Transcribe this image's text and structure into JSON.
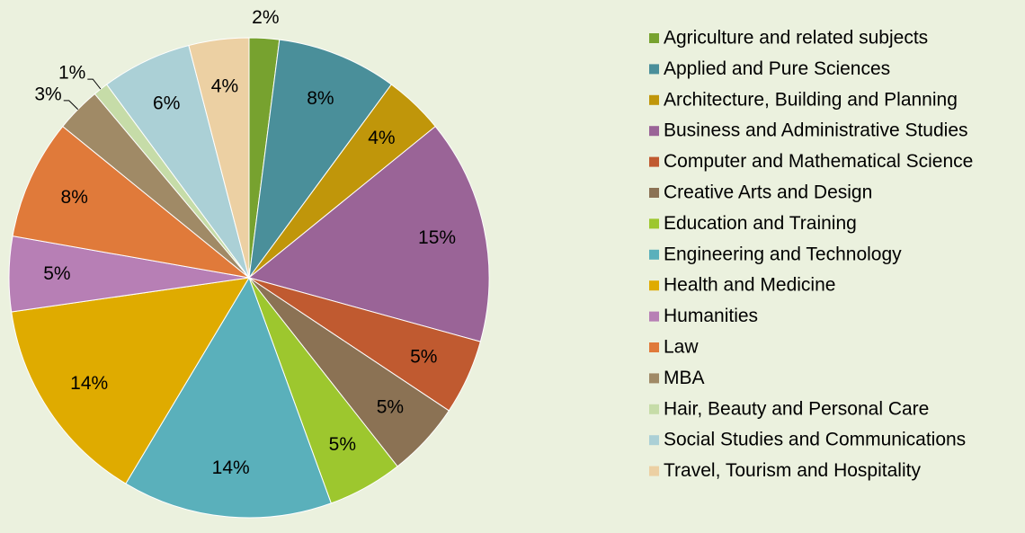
{
  "chart_data": {
    "type": "pie",
    "categories": [
      "Agriculture and related subjects",
      "Applied and Pure Sciences",
      "Architecture, Building and Planning",
      "Business and Administrative Studies",
      "Computer and Mathematical Science",
      "Creative Arts and Design",
      "Education and Training",
      "Engineering and Technology",
      "Health and Medicine",
      "Humanities",
      "Law",
      "MBA",
      "Hair, Beauty and Personal Care",
      "Social Studies and Communications",
      "Travel, Tourism and Hospitality"
    ],
    "values": [
      2,
      8,
      4,
      15,
      5,
      5,
      5,
      14,
      14,
      5,
      8,
      3,
      1,
      6,
      4
    ],
    "value_labels": [
      "2%",
      "8%",
      "4%",
      "15%",
      "5%",
      "5%",
      "5%",
      "14%",
      "14%",
      "5%",
      "8%",
      "3%",
      "1%",
      "6%",
      "4%"
    ],
    "colors": [
      "#77a22f",
      "#4a8f9a",
      "#c0960a",
      "#9a6497",
      "#c05a30",
      "#8b7254",
      "#9dc72e",
      "#5ab0bb",
      "#dfab00",
      "#b77fb5",
      "#e07a3a",
      "#a08a66",
      "#c6dca8",
      "#abd0d6",
      "#ecd0a3"
    ],
    "legend": "right"
  }
}
